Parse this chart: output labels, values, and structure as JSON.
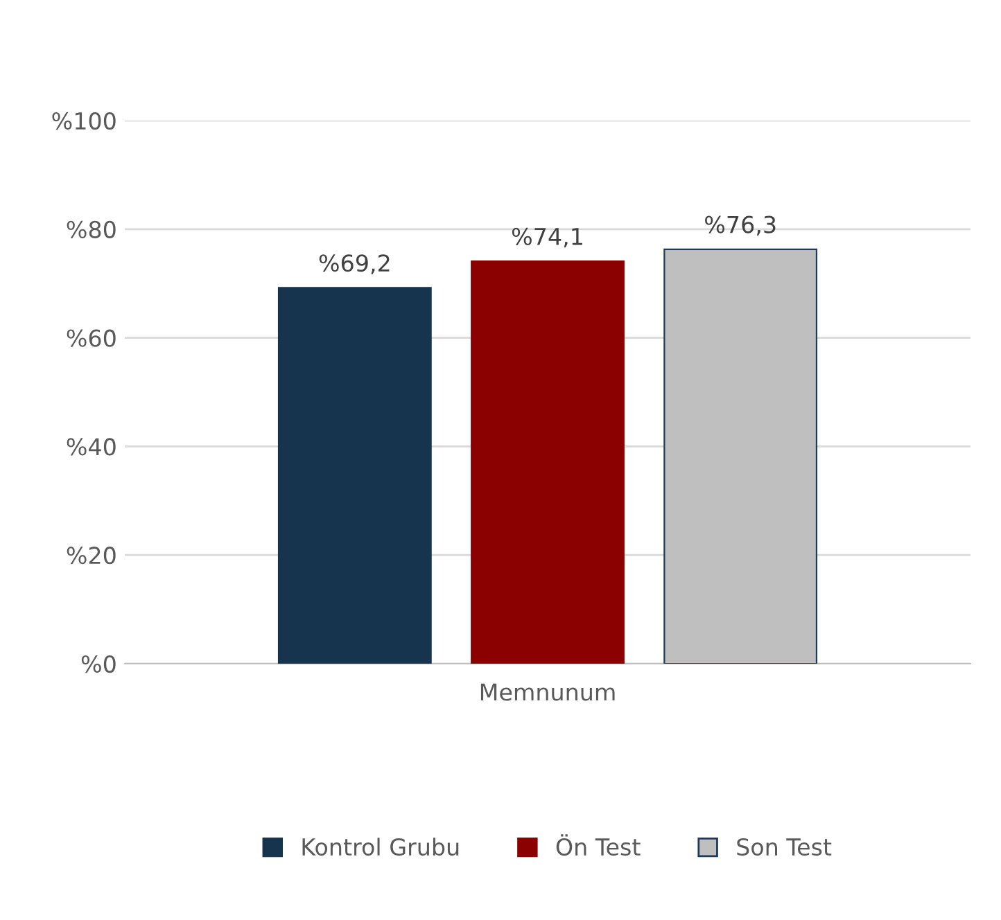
{
  "chart_data": {
    "type": "bar",
    "categories": [
      "Memnunum"
    ],
    "series": [
      {
        "name": "Kontrol Grubu",
        "color": "#17344f",
        "values": [
          69.2
        ],
        "value_labels": [
          "%69,2"
        ]
      },
      {
        "name": "Ön Test",
        "color": "#8b0000",
        "values": [
          74.1
        ],
        "value_labels": [
          "%74,1"
        ]
      },
      {
        "name": "Son Test",
        "color": "#bfbfbf",
        "values": [
          76.3
        ],
        "value_labels": [
          "%76,3"
        ]
      }
    ],
    "ylim": [
      0,
      100
    ],
    "yticks": [
      {
        "value": 0,
        "label": "%0"
      },
      {
        "value": 20,
        "label": "%20"
      },
      {
        "value": 40,
        "label": "%40"
      },
      {
        "value": 60,
        "label": "%60"
      },
      {
        "value": 80,
        "label": "%80"
      },
      {
        "value": 100,
        "label": "%100"
      }
    ],
    "grid": "y",
    "legend": "bottom"
  }
}
